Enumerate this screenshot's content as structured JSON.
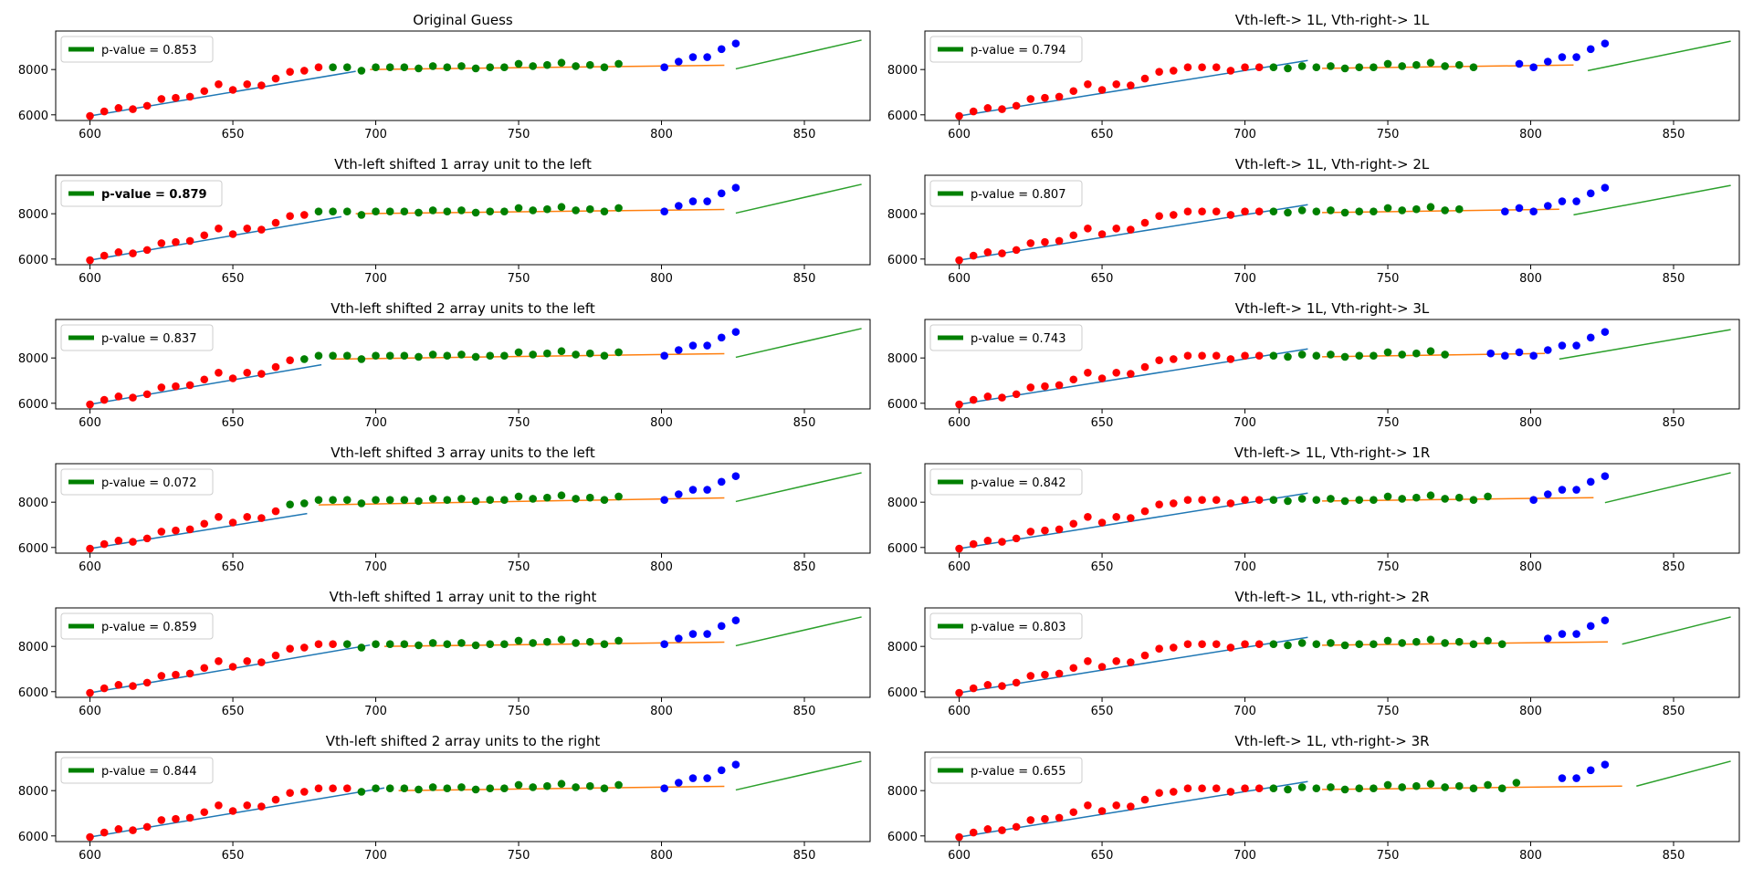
{
  "figure": {
    "grid": false,
    "legend_placement": "upper left",
    "colors": {
      "left_points": "#ff0000",
      "middle_points": "#008000",
      "right_points": "#0000ff",
      "left_fit": "#1f77b4",
      "middle_fit": "#ff7f0e",
      "right_fit": "#2ca02c",
      "legend_swatch": "#008000"
    }
  },
  "chart_data": [
    {
      "type": "scatter",
      "title": "Original Guess",
      "legend": "p-value = 0.853",
      "legend_bold": false,
      "xlim": [
        588,
        873
      ],
      "ylim": [
        5750,
        9700
      ],
      "xticks": [
        600,
        650,
        700,
        750,
        800,
        850
      ],
      "yticks": [
        6000,
        8000
      ],
      "split": [
        0,
        17,
        38,
        44
      ],
      "fits": [
        [
          600,
          5950,
          693,
          7920
        ],
        [
          698,
          8000,
          822,
          8190
        ],
        [
          826,
          8030,
          870,
          9300
        ]
      ]
    },
    {
      "type": "scatter",
      "title": "Vth-left-> 1L, Vth-right-> 1L",
      "legend": "p-value = 0.794",
      "legend_bold": false,
      "xlim": [
        588,
        873
      ],
      "ylim": [
        5750,
        9700
      ],
      "xticks": [
        600,
        650,
        700,
        750,
        800,
        850
      ],
      "yticks": [
        6000,
        8000
      ],
      "split": [
        0,
        22,
        37,
        44
      ],
      "fits": [
        [
          600,
          5950,
          722,
          8400
        ],
        [
          727,
          8050,
          815,
          8200
        ],
        [
          820,
          7950,
          870,
          9250
        ]
      ]
    },
    {
      "type": "scatter",
      "title": "Vth-left shifted 1 array unit to the left",
      "legend": "p-value = 0.879",
      "legend_bold": true,
      "xlim": [
        588,
        873
      ],
      "ylim": [
        5750,
        9700
      ],
      "xticks": [
        600,
        650,
        700,
        750,
        800,
        850
      ],
      "yticks": [
        6000,
        8000
      ],
      "split": [
        0,
        16,
        38,
        44
      ],
      "fits": [
        [
          600,
          5950,
          688,
          7870
        ],
        [
          693,
          8000,
          822,
          8190
        ],
        [
          826,
          8030,
          870,
          9300
        ]
      ]
    },
    {
      "type": "scatter",
      "title": "Vth-left-> 1L, Vth-right-> 2L",
      "legend": "p-value = 0.807",
      "legend_bold": false,
      "xlim": [
        588,
        873
      ],
      "ylim": [
        5750,
        9700
      ],
      "xticks": [
        600,
        650,
        700,
        750,
        800,
        850
      ],
      "yticks": [
        6000,
        8000
      ],
      "split": [
        0,
        22,
        36,
        44
      ],
      "fits": [
        [
          600,
          5950,
          722,
          8400
        ],
        [
          727,
          8050,
          810,
          8200
        ],
        [
          815,
          7950,
          870,
          9250
        ]
      ]
    },
    {
      "type": "scatter",
      "title": "Vth-left shifted 2 array units to the left",
      "legend": "p-value = 0.837",
      "legend_bold": false,
      "xlim": [
        588,
        873
      ],
      "ylim": [
        5750,
        9700
      ],
      "xticks": [
        600,
        650,
        700,
        750,
        800,
        850
      ],
      "yticks": [
        6000,
        8000
      ],
      "split": [
        0,
        15,
        38,
        44
      ],
      "fits": [
        [
          600,
          5950,
          681,
          7700
        ],
        [
          685,
          7950,
          822,
          8190
        ],
        [
          826,
          8030,
          870,
          9300
        ]
      ]
    },
    {
      "type": "scatter",
      "title": "Vth-left-> 1L, Vth-right-> 3L",
      "legend": "p-value = 0.743",
      "legend_bold": false,
      "xlim": [
        588,
        873
      ],
      "ylim": [
        5750,
        9700
      ],
      "xticks": [
        600,
        650,
        700,
        750,
        800,
        850
      ],
      "yticks": [
        6000,
        8000
      ],
      "split": [
        0,
        22,
        35,
        44
      ],
      "fits": [
        [
          600,
          5950,
          722,
          8400
        ],
        [
          727,
          8050,
          805,
          8200
        ],
        [
          810,
          7950,
          870,
          9250
        ]
      ]
    },
    {
      "type": "scatter",
      "title": "Vth-left shifted 3 array units to the left",
      "legend": "p-value = 0.072",
      "legend_bold": false,
      "xlim": [
        588,
        873
      ],
      "ylim": [
        5750,
        9700
      ],
      "xticks": [
        600,
        650,
        700,
        750,
        800,
        850
      ],
      "yticks": [
        6000,
        8000
      ],
      "split": [
        0,
        14,
        38,
        44
      ],
      "fits": [
        [
          600,
          5950,
          676,
          7500
        ],
        [
          680,
          7880,
          822,
          8190
        ],
        [
          826,
          8030,
          870,
          9300
        ]
      ]
    },
    {
      "type": "scatter",
      "title": "Vth-left-> 1L, Vth-right-> 1R",
      "legend": "p-value = 0.842",
      "legend_bold": false,
      "xlim": [
        588,
        873
      ],
      "ylim": [
        5750,
        9700
      ],
      "xticks": [
        600,
        650,
        700,
        750,
        800,
        850
      ],
      "yticks": [
        6000,
        8000
      ],
      "split": [
        0,
        22,
        38,
        44
      ],
      "fits": [
        [
          600,
          5950,
          722,
          8400
        ],
        [
          727,
          8050,
          822,
          8200
        ],
        [
          826,
          7980,
          870,
          9300
        ]
      ]
    },
    {
      "type": "scatter",
      "title": "Vth-left shifted 1 array unit to the right",
      "legend": "p-value = 0.859",
      "legend_bold": false,
      "xlim": [
        588,
        873
      ],
      "ylim": [
        5750,
        9700
      ],
      "xticks": [
        600,
        650,
        700,
        750,
        800,
        850
      ],
      "yticks": [
        6000,
        8000
      ],
      "split": [
        0,
        18,
        38,
        44
      ],
      "fits": [
        [
          600,
          5950,
          698,
          8060
        ],
        [
          703,
          8000,
          822,
          8190
        ],
        [
          826,
          8030,
          870,
          9300
        ]
      ]
    },
    {
      "type": "scatter",
      "title": "Vth-left-> 1L, vth-right-> 2R",
      "legend": "p-value = 0.803",
      "legend_bold": false,
      "xlim": [
        588,
        873
      ],
      "ylim": [
        5750,
        9700
      ],
      "xticks": [
        600,
        650,
        700,
        750,
        800,
        850
      ],
      "yticks": [
        6000,
        8000
      ],
      "split": [
        0,
        22,
        39,
        44
      ],
      "fits": [
        [
          600,
          5950,
          722,
          8400
        ],
        [
          727,
          8050,
          827,
          8200
        ],
        [
          832,
          8100,
          870,
          9300
        ]
      ]
    },
    {
      "type": "scatter",
      "title": "Vth-left shifted 2 array units to the right",
      "legend": "p-value = 0.844",
      "legend_bold": false,
      "xlim": [
        588,
        873
      ],
      "ylim": [
        5750,
        9700
      ],
      "xticks": [
        600,
        650,
        700,
        750,
        800,
        850
      ],
      "yticks": [
        6000,
        8000
      ],
      "split": [
        0,
        19,
        38,
        44
      ],
      "fits": [
        [
          600,
          5950,
          703,
          8120
        ],
        [
          708,
          8000,
          822,
          8190
        ],
        [
          826,
          8030,
          870,
          9300
        ]
      ]
    },
    {
      "type": "scatter",
      "title": "Vth-left-> 1L, vth-right-> 3R",
      "legend": "p-value = 0.655",
      "legend_bold": false,
      "xlim": [
        588,
        873
      ],
      "ylim": [
        5750,
        9700
      ],
      "xticks": [
        600,
        650,
        700,
        750,
        800,
        850
      ],
      "yticks": [
        6000,
        8000
      ],
      "split": [
        0,
        22,
        40,
        44
      ],
      "fits": [
        [
          600,
          5950,
          722,
          8400
        ],
        [
          727,
          8050,
          832,
          8200
        ],
        [
          837,
          8200,
          870,
          9300
        ]
      ]
    }
  ],
  "points": {
    "x": [
      600,
      605,
      610,
      615,
      620,
      625,
      630,
      635,
      640,
      645,
      650,
      655,
      660,
      665,
      670,
      675,
      680,
      685,
      690,
      695,
      700,
      705,
      710,
      715,
      720,
      725,
      730,
      735,
      740,
      745,
      750,
      755,
      760,
      765,
      770,
      775,
      780,
      785,
      790,
      795,
      800,
      805,
      810,
      815
    ],
    "y": [
      5950,
      6150,
      6300,
      6250,
      6400,
      6700,
      6750,
      6800,
      7050,
      7350,
      7100,
      7350,
      7300,
      7600,
      7900,
      7950,
      8100,
      8100,
      8100,
      7950,
      8100,
      8100,
      8100,
      8050,
      8150,
      8100,
      8150,
      8050,
      8100,
      8100,
      8250,
      8150,
      8200,
      8300,
      8150,
      8200,
      8100,
      8250,
      8100,
      8350,
      8550,
      8550,
      8900,
      9150
    ]
  }
}
